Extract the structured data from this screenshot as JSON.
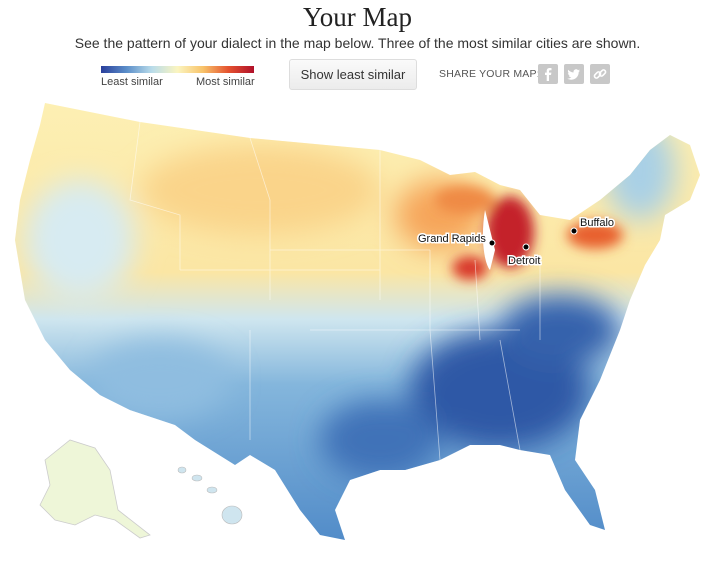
{
  "header": {
    "title": "Your Map",
    "subtitle": "See the pattern of your dialect in the map below. Three of the most similar cities are shown."
  },
  "legend": {
    "low": "Least similar",
    "high": "Most similar"
  },
  "button": {
    "label": "Show least similar"
  },
  "share": {
    "label": "SHARE YOUR MAP:"
  },
  "cities": [
    {
      "label": "Grand Rapids"
    },
    {
      "label": "Detroit"
    },
    {
      "label": "Buffalo"
    }
  ]
}
